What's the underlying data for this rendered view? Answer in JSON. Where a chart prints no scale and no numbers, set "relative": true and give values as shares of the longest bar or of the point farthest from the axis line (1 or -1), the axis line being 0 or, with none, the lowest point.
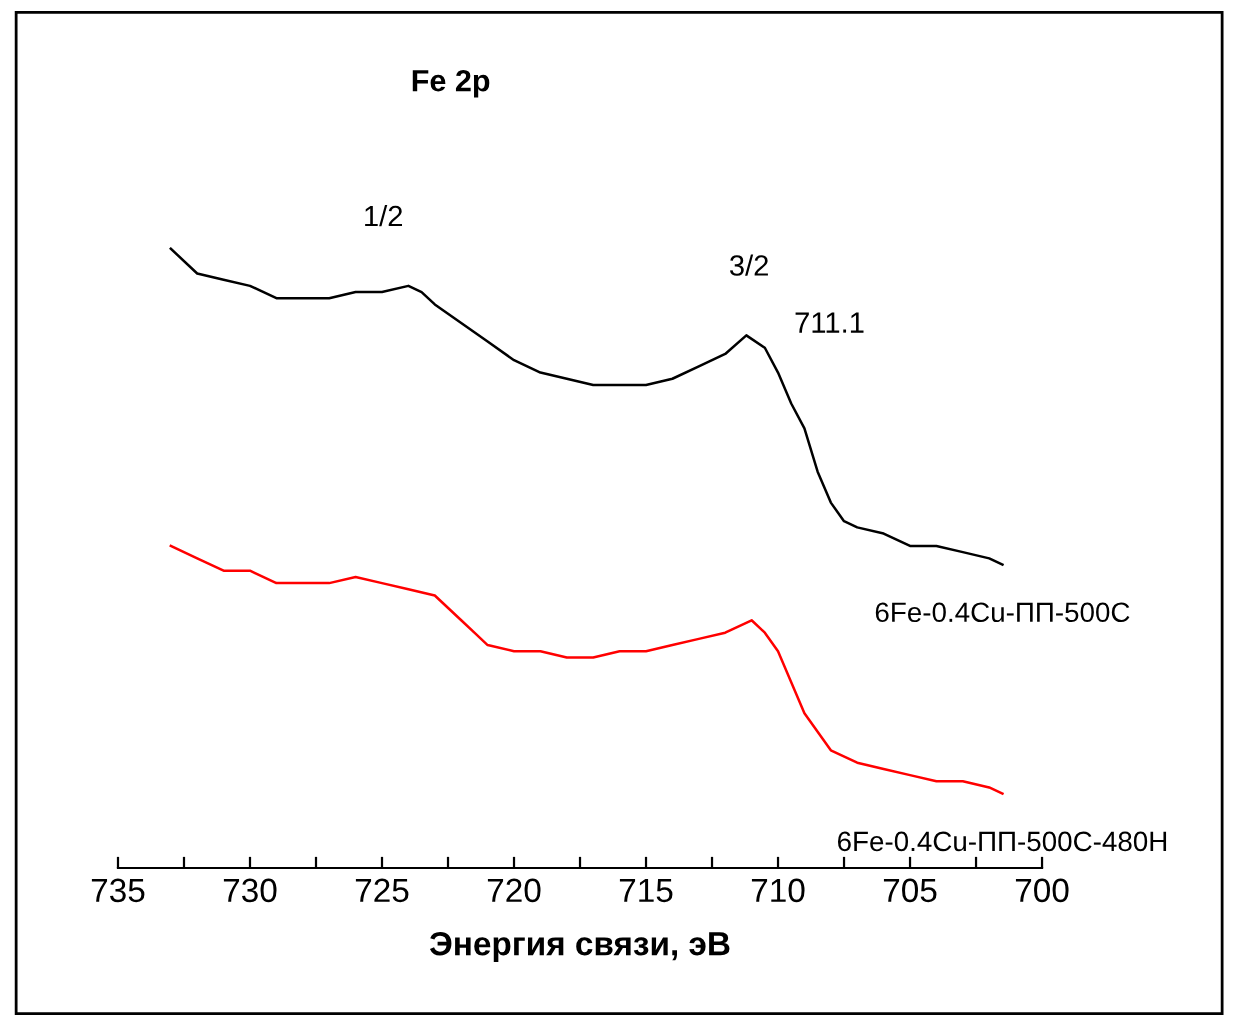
{
  "chart_data": {
    "type": "line",
    "title": "Fe 2p",
    "xlabel": "Энергия связи, эВ",
    "relative": true,
    "xlim": [
      735,
      700
    ],
    "xticks": [
      735,
      {
        "value": 732.5,
        "label": null
      },
      730,
      {
        "value": 727.5,
        "label": null
      },
      725,
      {
        "value": 722.5,
        "label": null
      },
      720,
      {
        "value": 717.5,
        "label": null
      },
      715,
      {
        "value": 712.5,
        "label": null
      },
      710,
      {
        "value": 707.5,
        "label": null
      },
      705,
      {
        "value": 702.5,
        "label": null
      },
      700
    ],
    "grid": false,
    "legend": false,
    "marker": "none",
    "line_style": "solid",
    "annotations": [
      "1/2",
      "3/2",
      "711.1"
    ],
    "series": [
      {
        "name": "6Fe-0.4Cu-ПП-500C",
        "color": "#000000",
        "x": [
          733,
          732,
          731,
          730,
          729,
          728,
          727,
          726,
          725,
          724,
          723.5,
          723,
          722,
          721,
          720,
          719,
          718,
          717,
          716,
          715,
          714,
          713,
          712,
          711.2,
          710.5,
          710,
          709.5,
          709,
          708.5,
          708,
          707.5,
          707,
          706,
          705,
          704,
          703,
          702,
          701.5
        ],
        "values": [
          1.0,
          0.96,
          0.95,
          0.94,
          0.92,
          0.92,
          0.92,
          0.93,
          0.93,
          0.94,
          0.93,
          0.91,
          0.88,
          0.85,
          0.82,
          0.8,
          0.79,
          0.78,
          0.78,
          0.78,
          0.79,
          0.81,
          0.83,
          0.86,
          0.84,
          0.8,
          0.75,
          0.71,
          0.64,
          0.59,
          0.56,
          0.55,
          0.54,
          0.52,
          0.52,
          0.51,
          0.5,
          0.49
        ]
      },
      {
        "name": "6Fe-0.4Cu-ПП-500C-480H",
        "color": "#ff0000",
        "x": [
          733,
          732,
          731,
          730,
          729,
          728,
          727,
          726,
          725,
          724,
          723,
          722,
          721.5,
          721,
          720,
          719,
          718,
          717,
          716,
          715,
          714,
          713,
          712,
          711,
          710.5,
          710,
          709.5,
          709,
          708.5,
          708,
          707,
          706,
          705,
          704,
          703,
          702,
          701.5
        ],
        "values": [
          0.52,
          0.5,
          0.48,
          0.48,
          0.46,
          0.46,
          0.46,
          0.47,
          0.46,
          0.45,
          0.44,
          0.4,
          0.38,
          0.36,
          0.35,
          0.35,
          0.34,
          0.34,
          0.35,
          0.35,
          0.36,
          0.37,
          0.38,
          0.4,
          0.38,
          0.35,
          0.3,
          0.25,
          0.22,
          0.19,
          0.17,
          0.16,
          0.15,
          0.14,
          0.14,
          0.13,
          0.12
        ]
      }
    ]
  }
}
